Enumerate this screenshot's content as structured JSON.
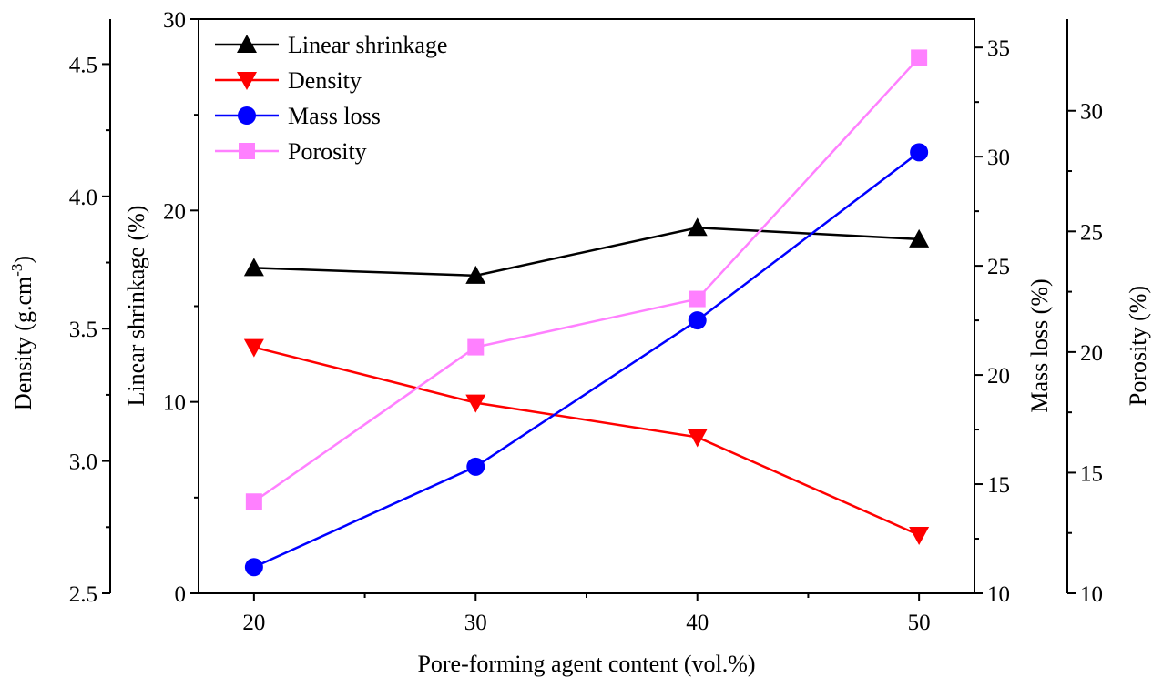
{
  "chart_data": {
    "type": "line",
    "xlabel": "Pore-forming agent content (vol.%)",
    "x": [
      20,
      30,
      40,
      50
    ],
    "xlim": [
      17.5,
      52.5
    ],
    "xticks": [
      20,
      30,
      40,
      50
    ],
    "axes": {
      "shrinkage": {
        "label": "Linear shrinkage (%)",
        "lim": [
          0,
          30
        ],
        "ticks": [
          0,
          10,
          20,
          30
        ],
        "tick_labels": [
          "0",
          "10",
          "20",
          "30"
        ]
      },
      "density": {
        "label_main": "Density (g.cm",
        "label_sup": "-3",
        "label_end": ")",
        "lim": [
          2.5,
          4.67
        ],
        "ticks": [
          2.5,
          3.0,
          3.5,
          4.0,
          4.5
        ],
        "tick_labels": [
          "2.5",
          "3.0",
          "3.5",
          "4.0",
          "4.5"
        ]
      },
      "mass_loss": {
        "label": "Mass loss (%)",
        "lim": [
          10,
          36.3
        ],
        "ticks": [
          10,
          15,
          20,
          25,
          30,
          35
        ],
        "tick_labels": [
          "10",
          "15",
          "20",
          "25",
          "30",
          "35"
        ]
      },
      "porosity": {
        "label": "Porosity (%)",
        "lim": [
          10,
          33.8
        ],
        "ticks": [
          10,
          15,
          20,
          25,
          30
        ],
        "tick_labels": [
          "10",
          "15",
          "20",
          "25",
          "30"
        ]
      }
    },
    "series": [
      {
        "name": "Linear shrinkage",
        "axis": "shrinkage",
        "color": "#000000",
        "marker": "triangle-up",
        "values": [
          17.0,
          16.6,
          19.1,
          18.5
        ]
      },
      {
        "name": "Density",
        "axis": "density",
        "color": "#ff0000",
        "marker": "triangle-down",
        "values": [
          3.43,
          3.22,
          3.09,
          2.72
        ]
      },
      {
        "name": "Mass loss",
        "axis": "mass_loss",
        "color": "#0000ff",
        "marker": "circle",
        "values": [
          11.2,
          15.8,
          22.5,
          30.2
        ]
      },
      {
        "name": "Porosity",
        "axis": "porosity",
        "color": "#ff80ff",
        "marker": "square",
        "values": [
          13.8,
          20.2,
          22.2,
          32.2
        ]
      }
    ],
    "legend_position": "top-left"
  }
}
